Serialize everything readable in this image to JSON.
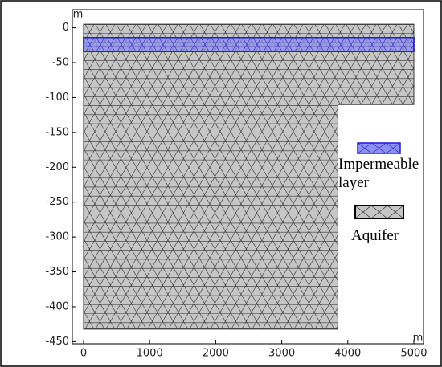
{
  "chart_data": {
    "type": "mesh",
    "x_unit": "m",
    "y_unit": "m",
    "xlim": [
      -170,
      5146
    ],
    "ylim": [
      -453,
      26
    ],
    "xticks": [
      0,
      1000,
      2000,
      3000,
      4000,
      5000
    ],
    "yticks": [
      0,
      -50,
      -100,
      -150,
      -200,
      -250,
      -300,
      -350,
      -400,
      -450
    ],
    "regions": [
      {
        "name": "Aquifer",
        "color": "#c6c6c6",
        "edge": "#333333",
        "x": [
          0,
          5000,
          5000,
          3850,
          3850,
          0
        ],
        "y": [
          5,
          5,
          -110,
          -110,
          -432,
          -432
        ]
      },
      {
        "name": "Impermeable layer",
        "color": "#8f8fef",
        "edge": "#1f1fd0",
        "x": [
          0,
          5000,
          5000,
          0
        ],
        "y": [
          -14,
          -14,
          -34,
          -34
        ]
      }
    ]
  }
}
